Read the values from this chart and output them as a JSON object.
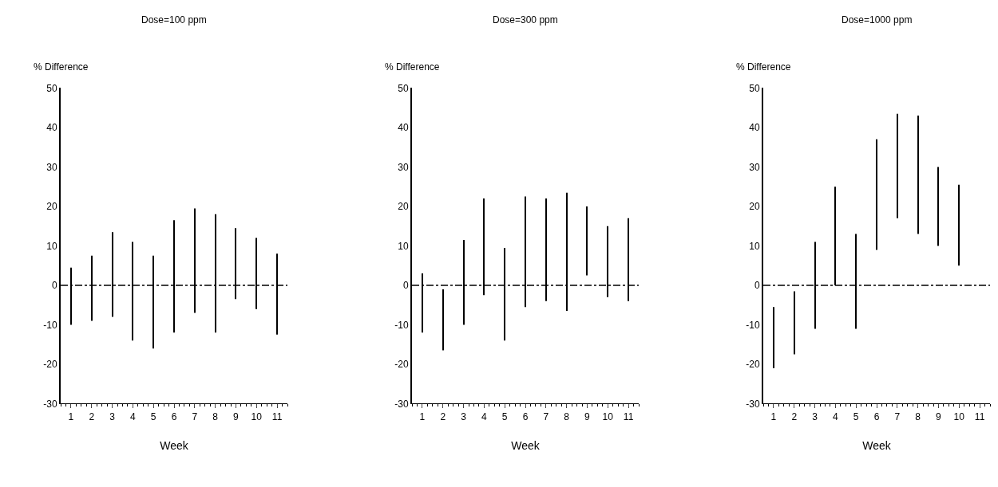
{
  "chart_data": [
    {
      "type": "bar",
      "title": "Dose=100 ppm",
      "xlabel": "Week",
      "ylabel": "% Difference",
      "x": [
        1,
        2,
        3,
        4,
        5,
        6,
        7,
        8,
        9,
        10,
        11
      ],
      "series": [
        {
          "color": "#000000",
          "base": [
            -10,
            -9,
            -8,
            -14,
            -16,
            -12,
            -7,
            -12,
            -3.5,
            -6,
            -12.5
          ],
          "values": [
            14.5,
            16.5,
            21.5,
            25,
            23.5,
            28.5,
            26.5,
            30,
            18,
            18,
            20.5
          ]
        }
      ],
      "xlim": [
        0.5,
        11.5
      ],
      "xticks": [
        1,
        2,
        3,
        4,
        5,
        6,
        7,
        8,
        9,
        10,
        11
      ],
      "ylim": [
        -30,
        50
      ],
      "yticks": [
        -30,
        -20,
        -10,
        0,
        10,
        20,
        30,
        40,
        50
      ],
      "grid": false,
      "ref_lines": [
        {
          "axis": "y",
          "value": 0,
          "color": "#000000",
          "line_style": "dashed"
        }
      ]
    },
    {
      "type": "bar",
      "title": "Dose=300 ppm",
      "xlabel": "Week",
      "ylabel": "% Difference",
      "x": [
        1,
        2,
        3,
        4,
        5,
        6,
        7,
        8,
        9,
        10,
        11
      ],
      "series": [
        {
          "color": "#000000",
          "base": [
            -12,
            -16.5,
            -10,
            -2.5,
            -14,
            -5.5,
            -4,
            -6.5,
            2.5,
            -3,
            -4
          ],
          "values": [
            15,
            15.5,
            21.5,
            24.5,
            23.5,
            28,
            26,
            30,
            17.5,
            18,
            21
          ]
        }
      ],
      "xlim": [
        0.5,
        11.5
      ],
      "xticks": [
        1,
        2,
        3,
        4,
        5,
        6,
        7,
        8,
        9,
        10,
        11
      ],
      "ylim": [
        -30,
        50
      ],
      "yticks": [
        -30,
        -20,
        -10,
        0,
        10,
        20,
        30,
        40,
        50
      ],
      "grid": false,
      "ref_lines": [
        {
          "axis": "y",
          "value": 0,
          "color": "#000000",
          "line_style": "dashed"
        }
      ]
    },
    {
      "type": "bar",
      "title": "Dose=1000 ppm",
      "xlabel": "Week",
      "ylabel": "% Difference",
      "x": [
        1,
        2,
        3,
        4,
        5,
        6,
        7,
        8,
        9,
        10
      ],
      "series": [
        {
          "color": "#000000",
          "base": [
            -21,
            -17.5,
            -11,
            0,
            -11,
            9,
            17,
            13,
            10,
            5
          ],
          "values": [
            15.5,
            16,
            22,
            25,
            24,
            28,
            26.5,
            30,
            20,
            20.5
          ]
        }
      ],
      "xlim": [
        0.5,
        11.5
      ],
      "xticks": [
        1,
        2,
        3,
        4,
        5,
        6,
        7,
        8,
        9,
        10,
        11
      ],
      "ylim": [
        -30,
        50
      ],
      "yticks": [
        -30,
        -20,
        -10,
        0,
        10,
        20,
        30,
        40,
        50
      ],
      "grid": false,
      "ref_lines": [
        {
          "axis": "y",
          "value": 0,
          "color": "#000000",
          "line_style": "dashed"
        }
      ]
    }
  ]
}
